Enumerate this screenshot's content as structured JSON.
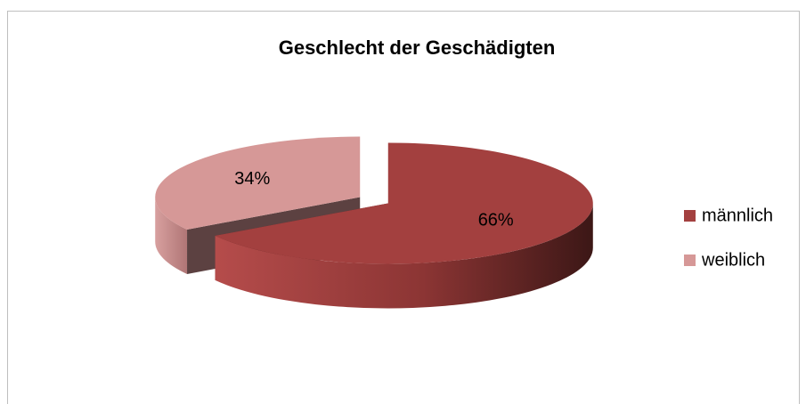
{
  "chart_data": {
    "type": "pie",
    "title": "Geschlecht der Geschädigten",
    "categories": [
      "männlich",
      "weiblich"
    ],
    "values": [
      66,
      34
    ],
    "value_labels": [
      "66%",
      "34%"
    ],
    "colors": [
      "#a3403f",
      "#d69897"
    ],
    "legend": "right"
  }
}
